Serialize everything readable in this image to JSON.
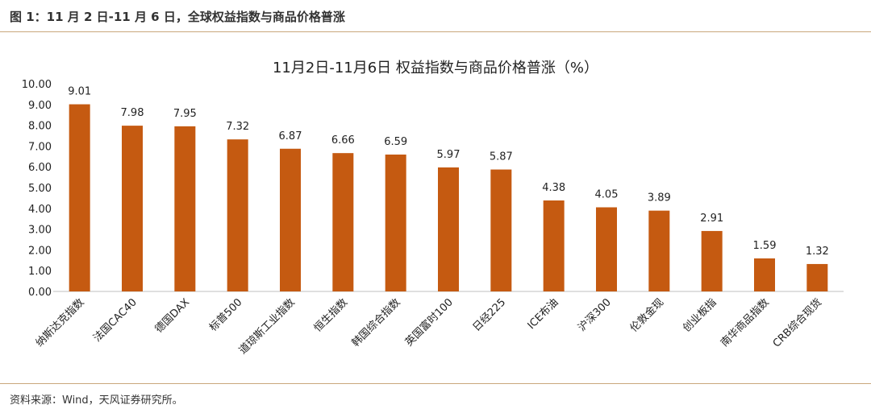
{
  "figure": {
    "title": "图 1：11 月 2 日-11 月 6 日，全球权益指数与商品价格普涨",
    "source": "资料来源：Wind，天风证券研究所。"
  },
  "colors": {
    "bar": "#C55A11",
    "axis": "#bfbfbf",
    "rule": "#c9a77c"
  },
  "chart_data": {
    "type": "bar",
    "title": "11月2日-11月6日 权益指数与商品价格普涨（%）",
    "xlabel": "",
    "ylabel": "",
    "ylim": [
      0,
      10
    ],
    "yticks": [
      "0.00",
      "1.00",
      "2.00",
      "3.00",
      "4.00",
      "5.00",
      "6.00",
      "7.00",
      "8.00",
      "9.00",
      "10.00"
    ],
    "grid": false,
    "legend": "none",
    "categories": [
      "纳斯达克指数",
      "法国CAC40",
      "德国DAX",
      "标普500",
      "道琼斯工业指数",
      "恒生指数",
      "韩国综合指数",
      "英国富时100",
      "日经225",
      "ICE布油",
      "沪深300",
      "伦敦金现",
      "创业板指",
      "南华商品指数",
      "CRB综合现货"
    ],
    "values": [
      9.01,
      7.98,
      7.95,
      7.32,
      6.87,
      6.66,
      6.59,
      5.97,
      5.87,
      4.38,
      4.05,
      3.89,
      2.91,
      1.59,
      1.32
    ],
    "value_labels": [
      "9.01",
      "7.98",
      "7.95",
      "7.32",
      "6.87",
      "6.66",
      "6.59",
      "5.97",
      "5.87",
      "4.38",
      "4.05",
      "3.89",
      "2.91",
      "1.59",
      "1.32"
    ]
  }
}
